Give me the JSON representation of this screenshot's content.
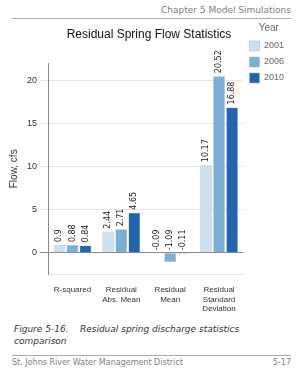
{
  "chart_data": {
    "type": "bar",
    "title": "Residual Spring Flow Statistics",
    "header": "Chapter 5 Model Simulations",
    "caption": "Figure 5-16.    Residual spring discharge statistics comparison",
    "footer_left": "St. Johns River Water Management District",
    "footer_right": "5-17",
    "ylabel": "Flow, cfs",
    "categories": [
      "R-squared",
      "Residual Abs. Mean",
      "Residual Mean",
      "Residual Standard Deviation"
    ],
    "series": [
      {
        "name": "2001",
        "color": "#cde0f0",
        "values": [
          0.9,
          2.44,
          -0.09,
          10.17
        ]
      },
      {
        "name": "2006",
        "color": "#7bafd4",
        "values": [
          0.88,
          2.71,
          -1.09,
          20.52
        ]
      },
      {
        "name": "2010",
        "color": "#2166ac",
        "values": [
          0.84,
          4.65,
          -0.11,
          16.88
        ]
      }
    ],
    "ylim": [
      -2.5,
      22
    ],
    "yticks": [
      0,
      5,
      10,
      15,
      20
    ],
    "grid": true,
    "legend": "right",
    "legend_title": "Year",
    "data_labels": true
  }
}
